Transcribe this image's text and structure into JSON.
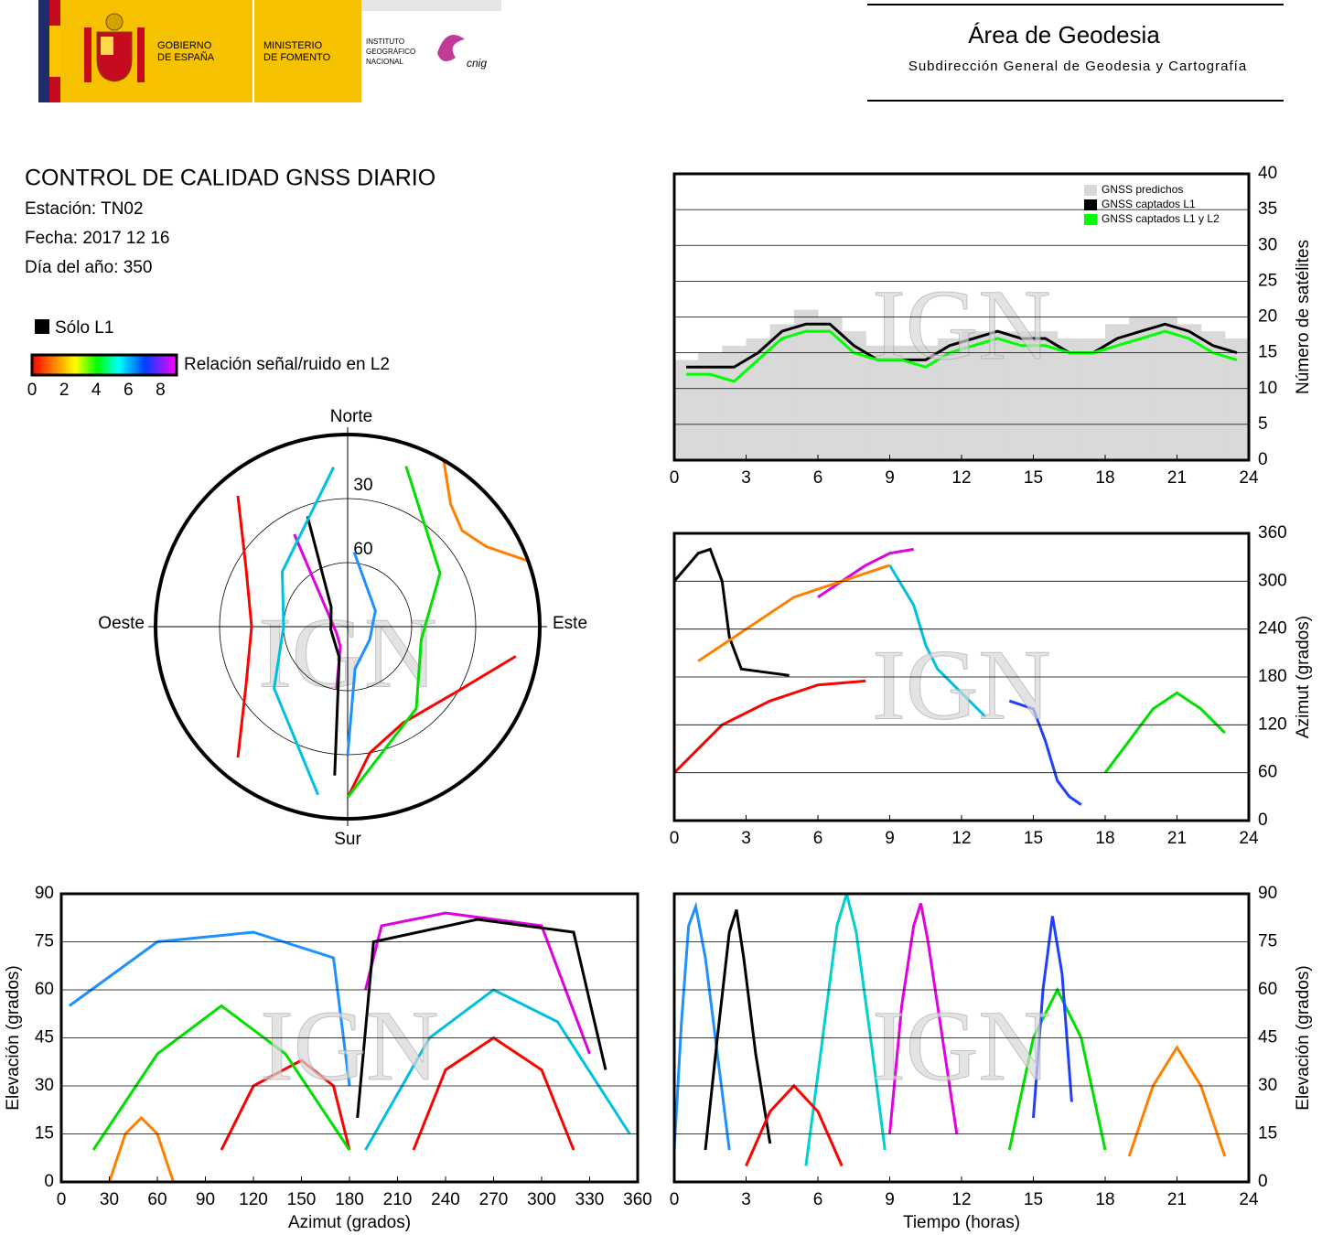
{
  "header": {
    "gov_lines": [
      "GOBIERNO",
      "DE ESPAÑA"
    ],
    "ministry_lines": [
      "MINISTERIO",
      "DE FOMENTO"
    ],
    "institute_lines": [
      "INSTITUTO",
      "GEOGRÁFICO",
      "NACIONAL"
    ],
    "cnig": "cnig",
    "title": "Área de Geodesia",
    "subtitle": "Subdirección General de Geodesia y Cartografía"
  },
  "report": {
    "title": "CONTROL DE CALIDAD GNSS DIARIO",
    "station": "Estación: TN02",
    "date": "Fecha: 2017 12 16",
    "doy": "Día del año: 350"
  },
  "legend": {
    "l1_only": "Sólo L1",
    "snr_label": "Relación señal/ruido en L2",
    "snr_lim": [
      0,
      9
    ],
    "snr_ticks": [
      0,
      2,
      4,
      6,
      8
    ]
  },
  "skyplot": {
    "type": "polar",
    "directions": {
      "north": "Norte",
      "east": "Este",
      "south": "Sur",
      "west": "Oeste"
    },
    "rticks": [
      30,
      60
    ],
    "watermark": "IGN",
    "series": [
      {
        "color": "#1e90ff",
        "x": [
          5,
          60,
          120,
          170,
          180
        ],
        "values": [
          55,
          75,
          78,
          70,
          30
        ]
      },
      {
        "color": "#e000e0",
        "x": [
          190,
          200,
          240,
          300,
          330
        ],
        "values": [
          60,
          80,
          84,
          80,
          40
        ]
      },
      {
        "color": "#000000",
        "x": [
          185,
          195,
          260,
          320,
          340
        ],
        "values": [
          20,
          75,
          82,
          78,
          35
        ]
      },
      {
        "color": "#ff0000",
        "x": [
          100,
          120,
          150,
          170,
          180
        ],
        "values": [
          10,
          30,
          38,
          30,
          10
        ]
      },
      {
        "color": "#ff0000",
        "x": [
          220,
          240,
          270,
          300,
          320
        ],
        "values": [
          10,
          35,
          45,
          35,
          10
        ]
      },
      {
        "color": "#00e000",
        "x": [
          20,
          60,
          100,
          140,
          180
        ],
        "values": [
          10,
          40,
          55,
          40,
          10
        ]
      },
      {
        "color": "#00c0e0",
        "x": [
          190,
          230,
          270,
          310,
          355
        ],
        "values": [
          10,
          45,
          60,
          50,
          15
        ]
      },
      {
        "color": "#ff8000",
        "x": [
          30,
          40,
          50,
          60,
          70
        ],
        "values": [
          0,
          15,
          20,
          15,
          0
        ]
      }
    ]
  },
  "chart_data": [
    {
      "type": "area",
      "ylabel": "Número de satélites",
      "yaxis_position": "right",
      "watermark": "IGN",
      "legend": "upper right",
      "grid": true,
      "xlim": [
        0,
        24
      ],
      "xticks": [
        0,
        3,
        6,
        9,
        12,
        15,
        18,
        21,
        24
      ],
      "ylim": [
        0,
        40
      ],
      "yticks": [
        0,
        5,
        10,
        15,
        20,
        25,
        30,
        35,
        40
      ],
      "x": [
        0.5,
        1.5,
        2.5,
        3.5,
        4.5,
        5.5,
        6.5,
        7.5,
        8.5,
        9.5,
        10.5,
        11.5,
        12.5,
        13.5,
        14.5,
        15.5,
        16.5,
        17.5,
        18.5,
        19.5,
        20.5,
        21.5,
        22.5,
        23.5
      ],
      "series": [
        {
          "name": "GNSS predichos",
          "color": "#d9d9d9",
          "fill": true,
          "values": [
            14,
            15,
            16,
            17,
            19,
            21,
            20,
            18,
            16,
            16,
            16,
            17,
            18,
            18,
            18,
            18,
            17,
            17,
            19,
            20,
            20,
            19,
            18,
            17
          ]
        },
        {
          "name": "GNSS captados L1",
          "color": "#000000",
          "values": [
            13,
            13,
            13,
            15,
            18,
            19,
            19,
            16,
            14,
            14,
            14,
            16,
            17,
            18,
            17,
            17,
            15,
            15,
            17,
            18,
            19,
            18,
            16,
            15
          ]
        },
        {
          "name": "GNSS captados L1 y L2",
          "color": "#00ff00",
          "values": [
            12,
            12,
            11,
            14,
            17,
            18,
            18,
            15,
            14,
            14,
            13,
            15,
            16,
            17,
            16,
            16,
            15,
            15,
            16,
            17,
            18,
            17,
            15,
            14
          ]
        }
      ]
    },
    {
      "type": "line",
      "ylabel": "Azimut (grados)",
      "yaxis_position": "right",
      "watermark": "IGN",
      "grid": true,
      "xlim": [
        0,
        24
      ],
      "xticks": [
        0,
        3,
        6,
        9,
        12,
        15,
        18,
        21,
        24
      ],
      "ylim": [
        0,
        360
      ],
      "yticks": [
        0,
        60,
        120,
        180,
        240,
        300,
        360
      ],
      "series": [
        {
          "color": "#000000",
          "x": [
            0,
            1,
            1.5,
            2,
            2.3,
            2.8,
            4.8
          ],
          "values": [
            300,
            335,
            340,
            300,
            230,
            190,
            182
          ]
        },
        {
          "color": "#ff0000",
          "x": [
            0,
            2,
            4,
            6,
            8
          ],
          "values": [
            60,
            120,
            150,
            170,
            175
          ]
        },
        {
          "color": "#00c0e0",
          "x": [
            9,
            10,
            10.5,
            11,
            12,
            13
          ],
          "values": [
            320,
            270,
            220,
            190,
            160,
            130
          ]
        },
        {
          "color": "#2040ff",
          "x": [
            14,
            15,
            15.5,
            16,
            16.5,
            17
          ],
          "values": [
            150,
            140,
            100,
            50,
            30,
            20
          ]
        },
        {
          "color": "#00e000",
          "x": [
            18,
            19,
            20,
            21,
            22,
            23
          ],
          "values": [
            60,
            100,
            140,
            160,
            140,
            110
          ]
        },
        {
          "color": "#e000e0",
          "x": [
            6,
            7,
            8,
            9,
            10
          ],
          "values": [
            280,
            300,
            320,
            335,
            340
          ]
        },
        {
          "color": "#ff8000",
          "x": [
            1,
            3,
            5,
            7,
            9
          ],
          "values": [
            200,
            240,
            280,
            300,
            320
          ]
        }
      ]
    },
    {
      "type": "line",
      "xlabel": "Azimut (grados)",
      "ylabel": "Elevación (grados)",
      "yaxis_position": "left",
      "watermark": "IGN",
      "grid": true,
      "xlim": [
        0,
        360
      ],
      "xticks": [
        0,
        30,
        60,
        90,
        120,
        150,
        180,
        210,
        240,
        270,
        300,
        330,
        360
      ],
      "ylim": [
        0,
        90
      ],
      "yticks": [
        0,
        15,
        30,
        45,
        60,
        75,
        90
      ],
      "series": [
        {
          "color": "#1e90ff",
          "x": [
            5,
            60,
            120,
            170,
            180
          ],
          "values": [
            55,
            75,
            78,
            70,
            30
          ]
        },
        {
          "color": "#e000e0",
          "x": [
            190,
            200,
            240,
            300,
            330
          ],
          "values": [
            60,
            80,
            84,
            80,
            40
          ]
        },
        {
          "color": "#000000",
          "x": [
            185,
            195,
            260,
            320,
            340
          ],
          "values": [
            20,
            75,
            82,
            78,
            35
          ]
        },
        {
          "color": "#ff0000",
          "x": [
            100,
            120,
            150,
            170,
            180
          ],
          "values": [
            10,
            30,
            38,
            30,
            10
          ]
        },
        {
          "color": "#ff0000",
          "x": [
            220,
            240,
            270,
            300,
            320
          ],
          "values": [
            10,
            35,
            45,
            35,
            10
          ]
        },
        {
          "color": "#00e000",
          "x": [
            20,
            60,
            100,
            140,
            180
          ],
          "values": [
            10,
            40,
            55,
            40,
            10
          ]
        },
        {
          "color": "#00c0e0",
          "x": [
            190,
            230,
            270,
            310,
            355
          ],
          "values": [
            10,
            45,
            60,
            50,
            15
          ]
        },
        {
          "color": "#ff8000",
          "x": [
            30,
            40,
            50,
            60,
            70
          ],
          "values": [
            0,
            15,
            20,
            15,
            0
          ]
        }
      ]
    },
    {
      "type": "line",
      "xlabel": "Tiempo (horas)",
      "ylabel": "Elevación (grados)",
      "yaxis_position": "right",
      "watermark": "IGN",
      "grid": true,
      "xlim": [
        0,
        24
      ],
      "xticks": [
        0,
        3,
        6,
        9,
        12,
        15,
        18,
        21,
        24
      ],
      "ylim": [
        0,
        90
      ],
      "yticks": [
        0,
        15,
        30,
        45,
        60,
        75,
        90
      ],
      "series": [
        {
          "color": "#1e90ff",
          "x": [
            0,
            0.3,
            0.6,
            0.9,
            1.3,
            1.8,
            2.3
          ],
          "values": [
            10,
            50,
            80,
            86,
            70,
            40,
            10
          ]
        },
        {
          "color": "#000000",
          "x": [
            1.3,
            1.8,
            2.3,
            2.6,
            2.9,
            3.4,
            4
          ],
          "values": [
            10,
            45,
            78,
            85,
            70,
            40,
            12
          ]
        },
        {
          "color": "#e000e0",
          "x": [
            9,
            9.5,
            10,
            10.3,
            10.6,
            11.2,
            11.8
          ],
          "values": [
            15,
            55,
            80,
            87,
            75,
            45,
            15
          ]
        },
        {
          "color": "#00d0d0",
          "x": [
            5.5,
            6.2,
            6.8,
            7.2,
            7.6,
            8.2,
            8.8
          ],
          "values": [
            5,
            45,
            80,
            90,
            78,
            45,
            10
          ]
        },
        {
          "color": "#ff0000",
          "x": [
            3,
            4,
            5,
            6,
            7
          ],
          "values": [
            5,
            22,
            30,
            22,
            5
          ]
        },
        {
          "color": "#00e000",
          "x": [
            14,
            15,
            16,
            17,
            18
          ],
          "values": [
            10,
            45,
            60,
            45,
            10
          ]
        },
        {
          "color": "#ff8000",
          "x": [
            19,
            20,
            21,
            22,
            23
          ],
          "values": [
            8,
            30,
            42,
            30,
            8
          ]
        },
        {
          "color": "#2040ff",
          "x": [
            15,
            15.4,
            15.8,
            16.2,
            16.6
          ],
          "values": [
            20,
            60,
            83,
            65,
            25
          ]
        }
      ]
    }
  ]
}
